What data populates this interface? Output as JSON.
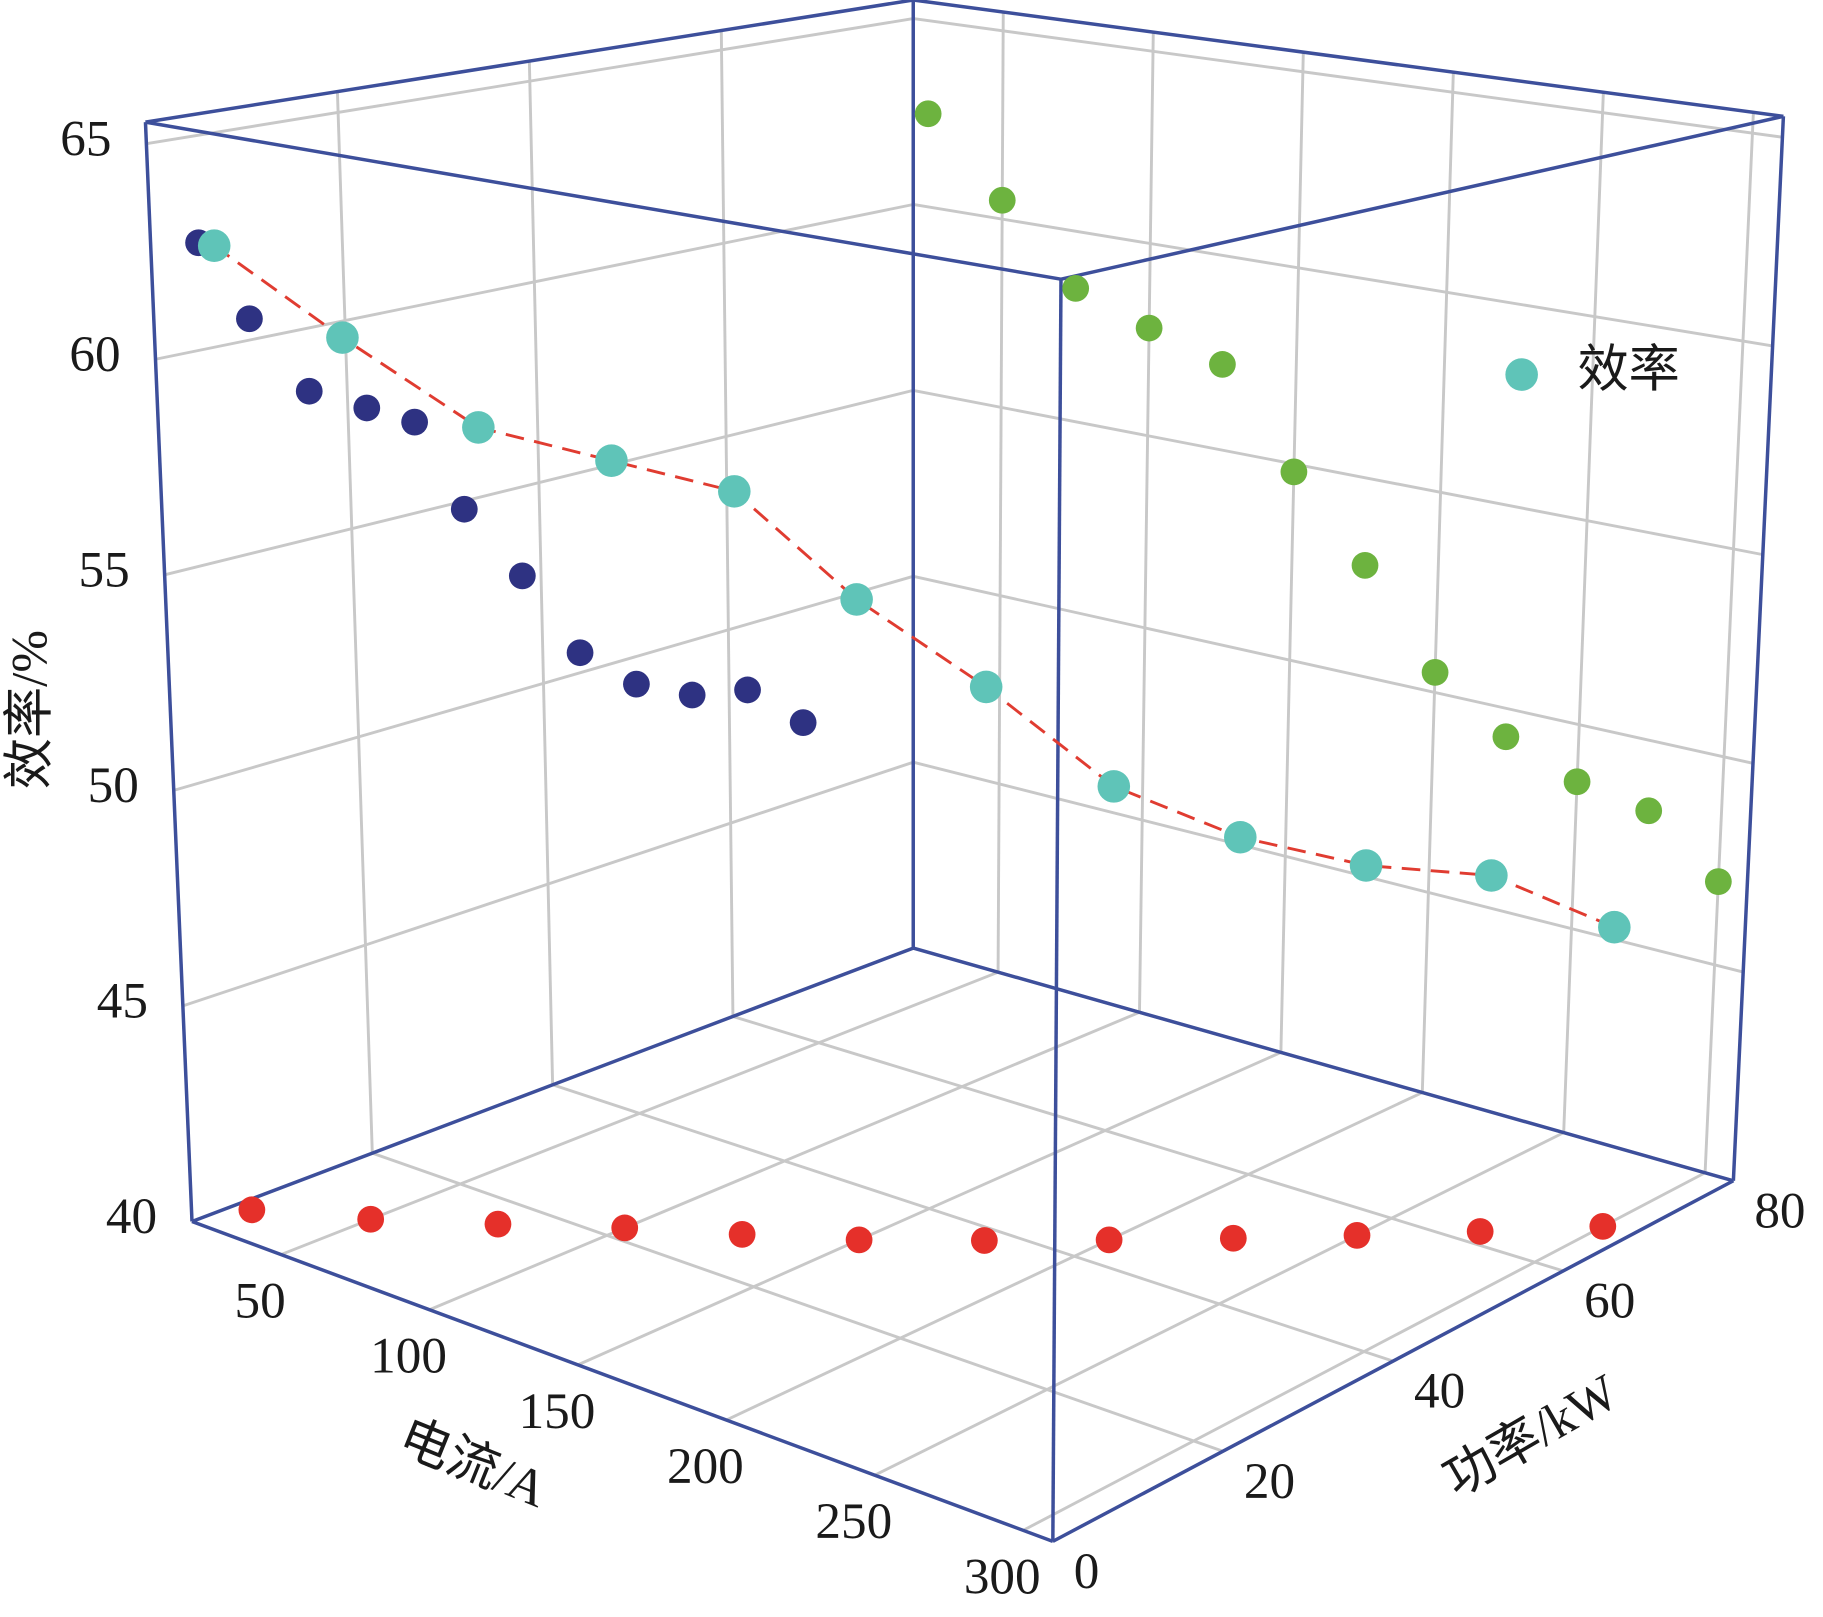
{
  "chart_data": {
    "type": "scatter3d",
    "x_label": "电流/A",
    "y_label": "功率/kW",
    "z_label": "效率/%",
    "xlim": [
      20,
      310
    ],
    "xticks": [
      50,
      100,
      150,
      200,
      250,
      300
    ],
    "ylim": [
      0,
      80
    ],
    "yticks": [
      0,
      20,
      40,
      60,
      80
    ],
    "zlim": [
      40,
      65.5
    ],
    "zticks": [
      40,
      45,
      50,
      55,
      60,
      65
    ],
    "grid": true,
    "legend": "top-right",
    "box_color": "#3d4f9b",
    "series": [
      {
        "name": "效率",
        "color": "#5fc4b8",
        "line_color": "#e03c31",
        "line_style": "dashed",
        "x": [
          25,
          50,
          75,
          100,
          125,
          150,
          175,
          200,
          225,
          250,
          275,
          300
        ],
        "y": [
          5,
          10,
          16,
          22,
          27,
          32,
          38,
          44,
          50,
          56,
          62,
          68
        ],
        "z": [
          62.5,
          60.5,
          58.5,
          57.8,
          57.2,
          54.8,
          52.8,
          50.5,
          49.3,
          48.6,
          48.3,
          47.0
        ]
      }
    ],
    "projection_colors": {
      "yz": "#2e3282",
      "xz": "#6db33f",
      "xy": "#e5302a"
    }
  }
}
